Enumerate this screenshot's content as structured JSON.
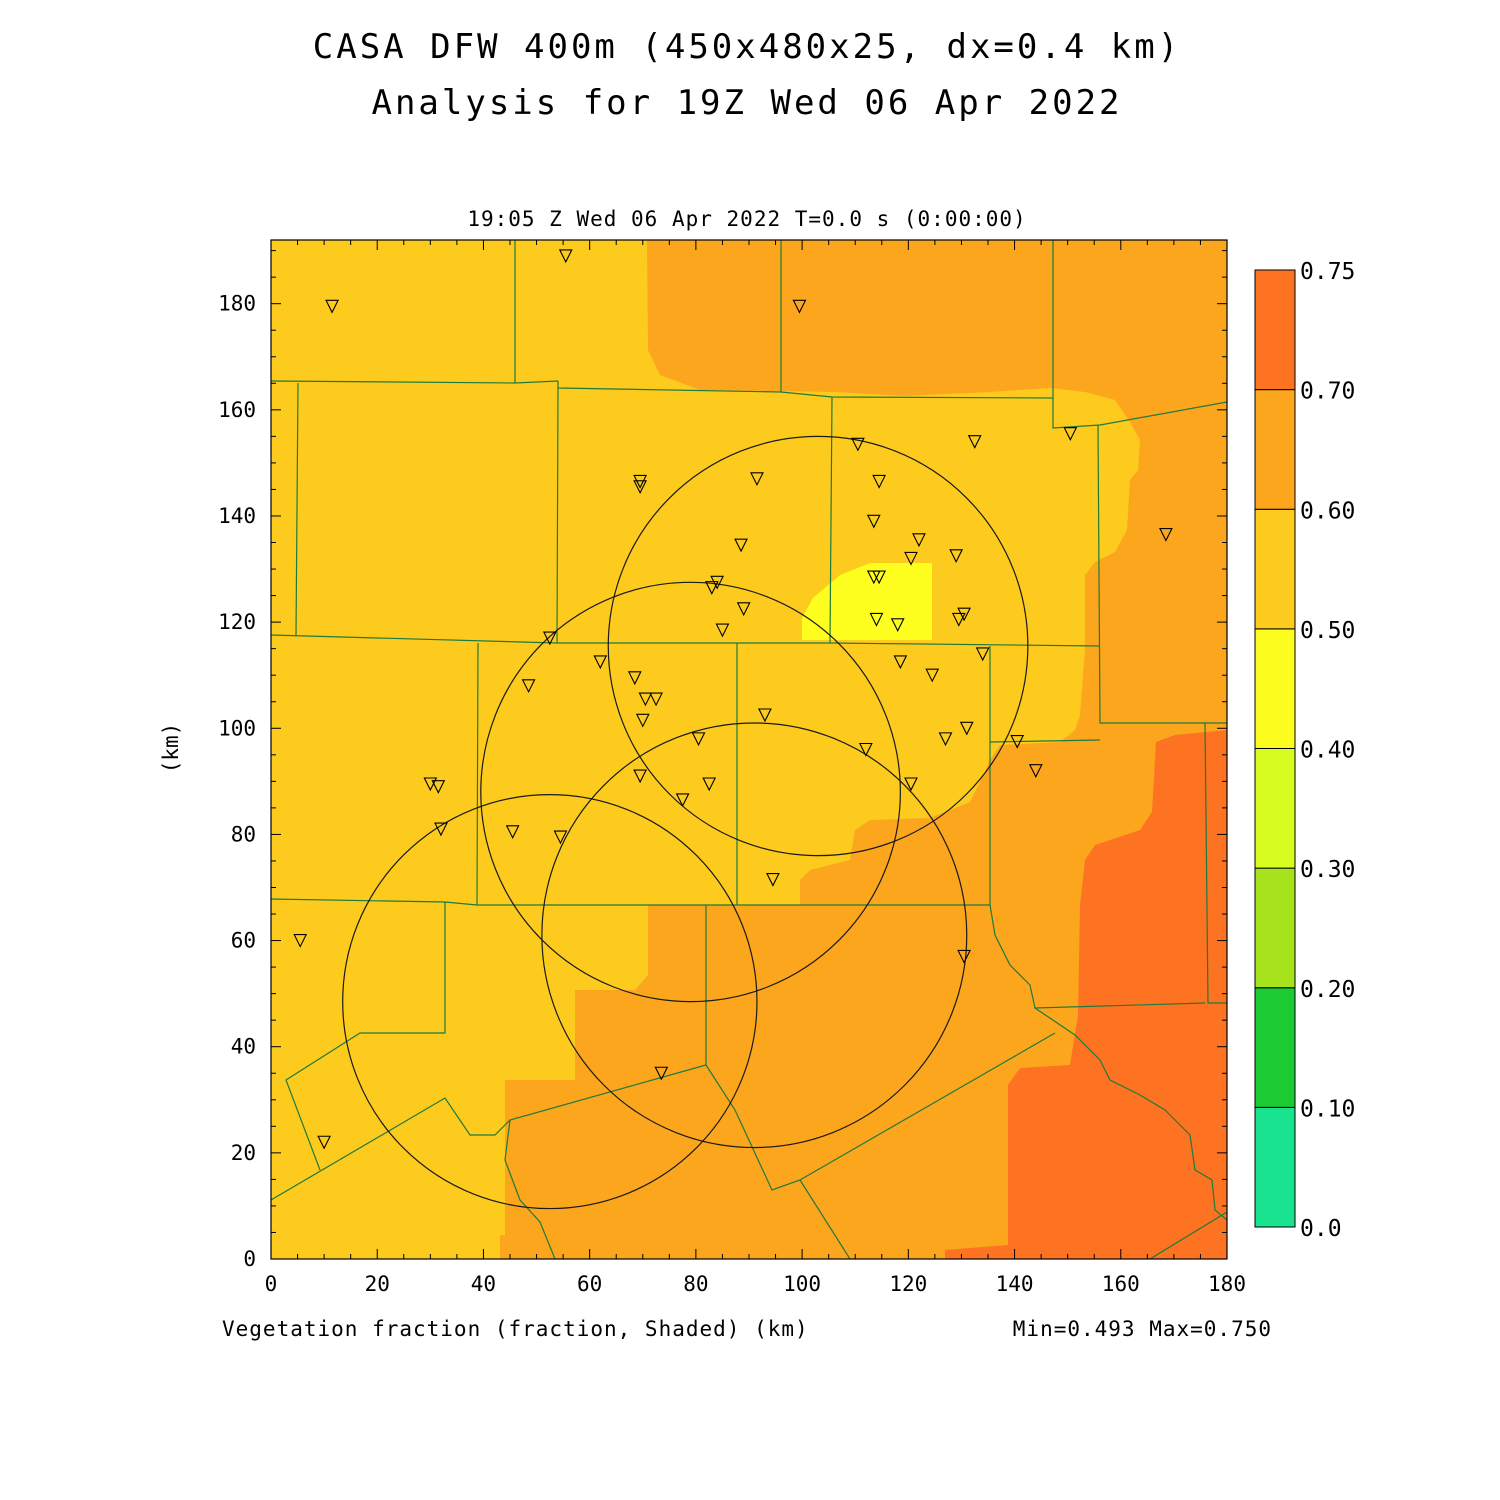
{
  "title": {
    "line1": "CASA DFW 400m (450x480x25, dx=0.4 km)",
    "line2": "Analysis for 19Z Wed 06 Apr 2022"
  },
  "subtitle": "19:05 Z Wed 06 Apr 2022   T=0.0 s (0:00:00)",
  "footer": {
    "field_label": "Vegetation fraction (fraction, Shaded)  (km)",
    "minmax": "Min=0.493 Max=0.750"
  },
  "colors": {
    "band_050_060": "#fdcb1d",
    "band_060_070": "#fca61e",
    "band_070_075": "#fd7322",
    "band_040_050": "#ffff1f",
    "county_lines": "#1e7a3c",
    "range_rings": "#1a1a1a"
  },
  "chart_data": {
    "type": "heatmap",
    "field": "Vegetation fraction",
    "xlabel": "",
    "ylabel": "(km)",
    "xlim": [
      0,
      180
    ],
    "ylim": [
      0,
      192
    ],
    "xticks": [
      0,
      20,
      40,
      60,
      80,
      100,
      120,
      140,
      160,
      180
    ],
    "yticks": [
      0,
      20,
      40,
      60,
      80,
      100,
      120,
      140,
      160,
      180
    ],
    "min": 0.493,
    "max": 0.75,
    "colorbar": {
      "levels": [
        "0.0",
        "0.10",
        "0.20",
        "0.30",
        "0.40",
        "0.50",
        "0.60",
        "0.70",
        "0.75"
      ],
      "colors": [
        "#19e38f",
        "#1ccb33",
        "#a6e31d",
        "#d7fc1f",
        "#fdfc1f",
        "#fdcb1d",
        "#fca61e",
        "#fd7322"
      ]
    },
    "range_rings_km": [
      {
        "cx": 52.5,
        "cy": 48.5,
        "r": 39
      },
      {
        "cx": 79,
        "cy": 88,
        "r": 39.5
      },
      {
        "cx": 91,
        "cy": 61,
        "r": 40
      },
      {
        "cx": 103,
        "cy": 115.5,
        "r": 39.5
      }
    ],
    "stations_km": [
      [
        11.5,
        179.5
      ],
      [
        55.5,
        189
      ],
      [
        99.5,
        179.5
      ],
      [
        69.5,
        146.5
      ],
      [
        69.5,
        145.5
      ],
      [
        91.5,
        147
      ],
      [
        110.5,
        153.5
      ],
      [
        132.5,
        154
      ],
      [
        150.5,
        155.5
      ],
      [
        114.5,
        146.5
      ],
      [
        113.5,
        139
      ],
      [
        88.5,
        134.5
      ],
      [
        122,
        135.5
      ],
      [
        129,
        132.5
      ],
      [
        120.5,
        132
      ],
      [
        168.5,
        136.5
      ],
      [
        84,
        127.5
      ],
      [
        83,
        126.5
      ],
      [
        113.5,
        128.5
      ],
      [
        114.5,
        128.5
      ],
      [
        89,
        122.5
      ],
      [
        130.5,
        121.5
      ],
      [
        129.5,
        120.5
      ],
      [
        114,
        120.5
      ],
      [
        118,
        119.5
      ],
      [
        85,
        118.5
      ],
      [
        52.5,
        117
      ],
      [
        62,
        112.5
      ],
      [
        118.5,
        112.5
      ],
      [
        124.5,
        110
      ],
      [
        134,
        114
      ],
      [
        68.5,
        109.5
      ],
      [
        48.5,
        108
      ],
      [
        70.5,
        105.5
      ],
      [
        72.5,
        105.5
      ],
      [
        70,
        101.5
      ],
      [
        93,
        102.5
      ],
      [
        131,
        100
      ],
      [
        127,
        98
      ],
      [
        80.5,
        98
      ],
      [
        140.5,
        97.5
      ],
      [
        112,
        96
      ],
      [
        144,
        92
      ],
      [
        69.5,
        91
      ],
      [
        82.5,
        89.5
      ],
      [
        30,
        89.5
      ],
      [
        31.5,
        89
      ],
      [
        120.5,
        89.5
      ],
      [
        77.5,
        86.5
      ],
      [
        32,
        81
      ],
      [
        45.5,
        80.5
      ],
      [
        54.5,
        79.5
      ],
      [
        94.5,
        71.5
      ],
      [
        5.5,
        60
      ],
      [
        130.5,
        57
      ],
      [
        73.5,
        35
      ],
      [
        10,
        22
      ]
    ]
  }
}
